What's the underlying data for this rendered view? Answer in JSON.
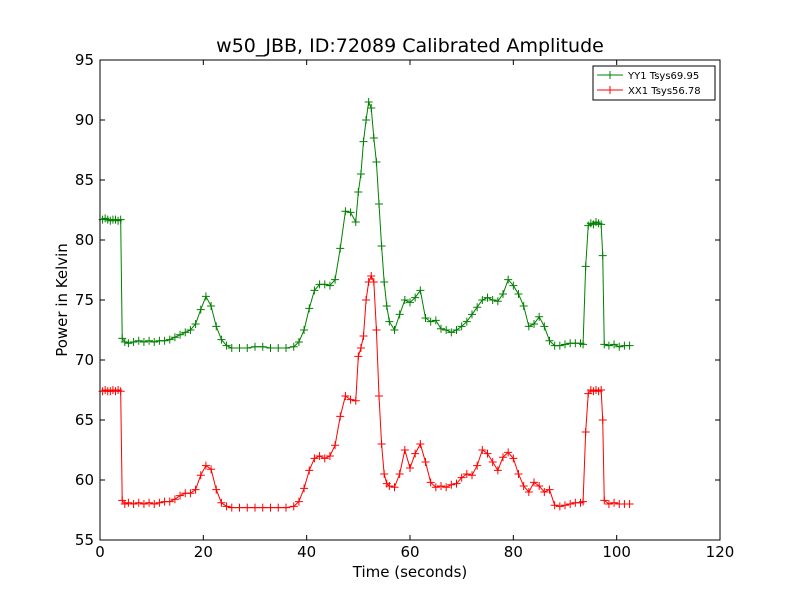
{
  "chart_data": {
    "type": "line",
    "title": "w50_JBB, ID:72089 Calibrated Amplitude",
    "xlabel": "Time (seconds)",
    "ylabel": "Power in Kelvin",
    "xlim": [
      0,
      120
    ],
    "ylim": [
      55,
      95
    ],
    "xticks": [
      0,
      20,
      40,
      60,
      80,
      100,
      120
    ],
    "yticks": [
      55,
      60,
      65,
      70,
      75,
      80,
      85,
      90,
      95
    ],
    "grid": false,
    "legend_position": "top-right",
    "series": [
      {
        "name": "YY1 Tsys69.95",
        "color": "#008000",
        "marker": "+",
        "points": [
          [
            0.5,
            81.7
          ],
          [
            1.0,
            81.8
          ],
          [
            1.5,
            81.7
          ],
          [
            2.0,
            81.6
          ],
          [
            2.5,
            81.7
          ],
          [
            3.0,
            81.7
          ],
          [
            3.5,
            81.6
          ],
          [
            4.0,
            81.7
          ],
          [
            4.3,
            71.8
          ],
          [
            4.8,
            71.5
          ],
          [
            5.5,
            71.4
          ],
          [
            6.5,
            71.5
          ],
          [
            7.5,
            71.6
          ],
          [
            8.5,
            71.5
          ],
          [
            9.5,
            71.6
          ],
          [
            10.5,
            71.5
          ],
          [
            11.5,
            71.6
          ],
          [
            12.5,
            71.6
          ],
          [
            13.5,
            71.7
          ],
          [
            14.5,
            71.9
          ],
          [
            15.5,
            72.1
          ],
          [
            16.5,
            72.3
          ],
          [
            17.5,
            72.5
          ],
          [
            18.5,
            73.0
          ],
          [
            19.5,
            74.2
          ],
          [
            20.5,
            75.3
          ],
          [
            21.5,
            74.5
          ],
          [
            22.5,
            72.8
          ],
          [
            23.5,
            71.7
          ],
          [
            24.5,
            71.2
          ],
          [
            25.5,
            71.0
          ],
          [
            27,
            71.0
          ],
          [
            28.5,
            71.0
          ],
          [
            30,
            71.1
          ],
          [
            31.5,
            71.1
          ],
          [
            33,
            71.0
          ],
          [
            34.5,
            71.0
          ],
          [
            36,
            71.0
          ],
          [
            37.5,
            71.1
          ],
          [
            38.5,
            71.5
          ],
          [
            39.5,
            72.5
          ],
          [
            40.5,
            74.3
          ],
          [
            41.5,
            75.8
          ],
          [
            42.5,
            76.3
          ],
          [
            43.5,
            76.3
          ],
          [
            44.5,
            76.2
          ],
          [
            45.5,
            76.7
          ],
          [
            46.5,
            79.3
          ],
          [
            47.5,
            82.4
          ],
          [
            48.5,
            82.3
          ],
          [
            49.5,
            81.5
          ],
          [
            50.0,
            84.0
          ],
          [
            50.5,
            85.5
          ],
          [
            51.0,
            88.2
          ],
          [
            51.5,
            90.0
          ],
          [
            52.0,
            91.5
          ],
          [
            52.5,
            91.0
          ],
          [
            53.0,
            88.5
          ],
          [
            53.5,
            86.5
          ],
          [
            54.0,
            83.0
          ],
          [
            54.5,
            79.5
          ],
          [
            55.0,
            76.5
          ],
          [
            55.5,
            74.5
          ],
          [
            56.0,
            73.2
          ],
          [
            57.0,
            72.5
          ],
          [
            58.0,
            73.8
          ],
          [
            59.0,
            75.0
          ],
          [
            60.0,
            74.8
          ],
          [
            61.0,
            75.2
          ],
          [
            62.0,
            75.8
          ],
          [
            63.0,
            73.5
          ],
          [
            64.0,
            73.2
          ],
          [
            65.0,
            73.3
          ],
          [
            66.0,
            72.6
          ],
          [
            67.0,
            72.5
          ],
          [
            68.0,
            72.3
          ],
          [
            69.0,
            72.5
          ],
          [
            70.0,
            72.8
          ],
          [
            71.0,
            73.2
          ],
          [
            72.0,
            73.8
          ],
          [
            73.0,
            74.4
          ],
          [
            74.0,
            75.0
          ],
          [
            75.0,
            75.2
          ],
          [
            76.0,
            75.0
          ],
          [
            77.0,
            74.9
          ],
          [
            78.0,
            75.5
          ],
          [
            79.0,
            76.7
          ],
          [
            80.0,
            76.2
          ],
          [
            81.0,
            75.5
          ],
          [
            82.0,
            74.5
          ],
          [
            83.0,
            72.8
          ],
          [
            84.0,
            73.0
          ],
          [
            85.0,
            73.6
          ],
          [
            86.0,
            72.8
          ],
          [
            87.0,
            71.6
          ],
          [
            88.0,
            71.2
          ],
          [
            89.0,
            71.2
          ],
          [
            90.0,
            71.3
          ],
          [
            91.0,
            71.4
          ],
          [
            92.0,
            71.4
          ],
          [
            93.0,
            71.4
          ],
          [
            93.5,
            71.3
          ],
          [
            94.0,
            77.8
          ],
          [
            94.5,
            81.2
          ],
          [
            95.0,
            81.4
          ],
          [
            95.5,
            81.3
          ],
          [
            96.0,
            81.5
          ],
          [
            96.5,
            81.4
          ],
          [
            97.0,
            81.3
          ],
          [
            97.3,
            78.7
          ],
          [
            97.6,
            71.3
          ],
          [
            98.5,
            71.2
          ],
          [
            99.5,
            71.3
          ],
          [
            100.5,
            71.1
          ],
          [
            101.5,
            71.2
          ],
          [
            102.5,
            71.2
          ]
        ]
      },
      {
        "name": "XX1 Tsys56.78",
        "color": "#ff0000",
        "marker": "+",
        "points": [
          [
            0.5,
            67.4
          ],
          [
            1.0,
            67.5
          ],
          [
            1.5,
            67.4
          ],
          [
            2.0,
            67.4
          ],
          [
            2.5,
            67.5
          ],
          [
            3.0,
            67.4
          ],
          [
            3.5,
            67.5
          ],
          [
            4.0,
            67.4
          ],
          [
            4.3,
            58.3
          ],
          [
            4.8,
            58.0
          ],
          [
            5.5,
            58.1
          ],
          [
            6.5,
            58.0
          ],
          [
            7.5,
            58.1
          ],
          [
            8.5,
            58.0
          ],
          [
            9.5,
            58.1
          ],
          [
            10.5,
            58.0
          ],
          [
            11.5,
            58.1
          ],
          [
            12.5,
            58.2
          ],
          [
            13.5,
            58.2
          ],
          [
            14.5,
            58.4
          ],
          [
            15.5,
            58.7
          ],
          [
            16.5,
            58.9
          ],
          [
            17.5,
            58.9
          ],
          [
            18.5,
            59.2
          ],
          [
            19.5,
            60.4
          ],
          [
            20.5,
            61.2
          ],
          [
            21.5,
            60.9
          ],
          [
            22.5,
            59.2
          ],
          [
            23.5,
            58.1
          ],
          [
            24.5,
            57.8
          ],
          [
            25.5,
            57.7
          ],
          [
            27,
            57.7
          ],
          [
            28.5,
            57.7
          ],
          [
            30,
            57.7
          ],
          [
            31.5,
            57.7
          ],
          [
            33,
            57.7
          ],
          [
            34.5,
            57.7
          ],
          [
            36,
            57.7
          ],
          [
            37.5,
            57.8
          ],
          [
            38.5,
            58.2
          ],
          [
            39.5,
            59.3
          ],
          [
            40.5,
            60.8
          ],
          [
            41.5,
            61.8
          ],
          [
            42.5,
            62.0
          ],
          [
            43.5,
            61.8
          ],
          [
            44.5,
            62.0
          ],
          [
            45.5,
            62.9
          ],
          [
            46.5,
            65.3
          ],
          [
            47.5,
            67.0
          ],
          [
            48.5,
            66.7
          ],
          [
            49.5,
            66.6
          ],
          [
            50.0,
            70.3
          ],
          [
            50.5,
            71.0
          ],
          [
            51.0,
            72.0
          ],
          [
            51.5,
            75.0
          ],
          [
            52.0,
            76.5
          ],
          [
            52.5,
            77.0
          ],
          [
            53.0,
            76.5
          ],
          [
            53.5,
            72.5
          ],
          [
            54.0,
            67.0
          ],
          [
            54.5,
            63.0
          ],
          [
            55.0,
            60.5
          ],
          [
            55.5,
            59.7
          ],
          [
            56.0,
            59.5
          ],
          [
            57.0,
            59.4
          ],
          [
            58.0,
            60.5
          ],
          [
            59.0,
            62.5
          ],
          [
            60.0,
            61.0
          ],
          [
            61.0,
            62.2
          ],
          [
            62.0,
            63.0
          ],
          [
            63.0,
            61.5
          ],
          [
            64.0,
            59.8
          ],
          [
            65.0,
            59.4
          ],
          [
            66.0,
            59.5
          ],
          [
            67.0,
            59.4
          ],
          [
            68.0,
            59.6
          ],
          [
            69.0,
            59.7
          ],
          [
            70.0,
            60.2
          ],
          [
            71.0,
            60.5
          ],
          [
            72.0,
            60.4
          ],
          [
            73.0,
            61.2
          ],
          [
            74.0,
            62.5
          ],
          [
            75.0,
            62.2
          ],
          [
            76.0,
            61.5
          ],
          [
            77.0,
            60.8
          ],
          [
            78.0,
            61.9
          ],
          [
            79.0,
            62.3
          ],
          [
            80.0,
            61.8
          ],
          [
            81.0,
            60.5
          ],
          [
            82.0,
            59.5
          ],
          [
            83.0,
            59.0
          ],
          [
            84.0,
            59.8
          ],
          [
            85.0,
            59.5
          ],
          [
            86.0,
            59.0
          ],
          [
            87.0,
            59.2
          ],
          [
            88.0,
            57.9
          ],
          [
            89.0,
            57.8
          ],
          [
            90.0,
            57.9
          ],
          [
            91.0,
            58.0
          ],
          [
            92.0,
            58.1
          ],
          [
            93.0,
            58.1
          ],
          [
            93.5,
            58.2
          ],
          [
            94.0,
            64.0
          ],
          [
            94.5,
            67.2
          ],
          [
            95.0,
            67.5
          ],
          [
            95.5,
            67.4
          ],
          [
            96.0,
            67.5
          ],
          [
            96.5,
            67.4
          ],
          [
            97.0,
            67.5
          ],
          [
            97.3,
            65.0
          ],
          [
            97.6,
            58.3
          ],
          [
            98.5,
            58.0
          ],
          [
            99.5,
            58.1
          ],
          [
            100.5,
            58.0
          ],
          [
            101.5,
            58.0
          ],
          [
            102.5,
            58.0
          ]
        ]
      }
    ]
  }
}
